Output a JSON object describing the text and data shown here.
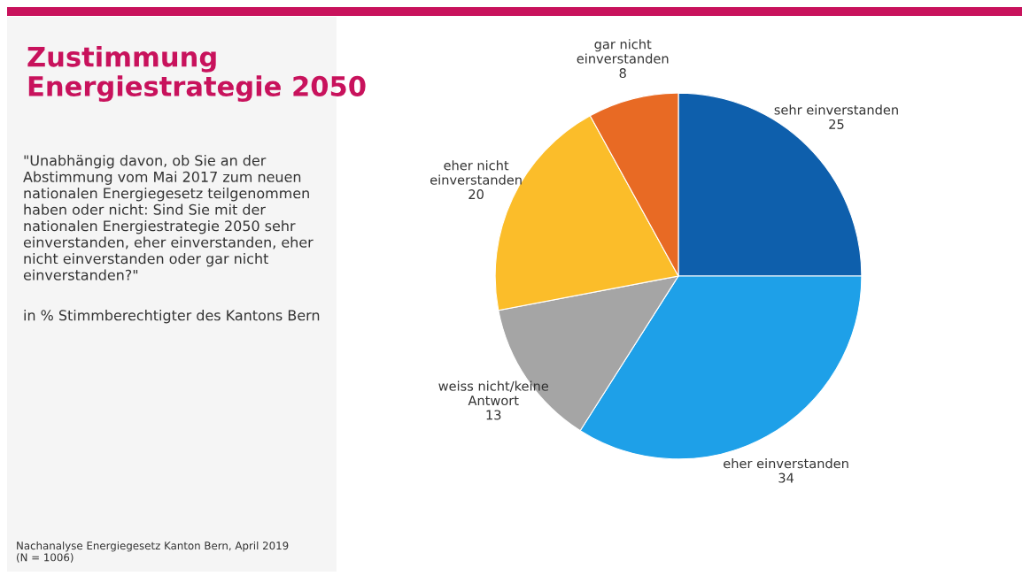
{
  "chart_data": {
    "type": "pie",
    "title": "Zustimmung\nEnergiestrategie 2050",
    "subtitle": "\"Unabhängig davon, ob Sie an der\nAbstimmung vom Mai 2017 zum neuen\nnationalen Energiegesetz teilgenommen\nhaben oder nicht: Sind Sie mit der\nnationalen Energiestrategie 2050 sehr\neinverstanden, eher einverstanden, eher\nnicht einverstanden oder gar nicht\neinverstanden?\"",
    "annotations": [
      "in % Stimmberechtigter des Kantons Bern",
      "Nachanalyse Energiegesetz Kanton Bern, April 2019\n(N = 1006)"
    ],
    "categories": [
      "sehr einverstanden",
      "eher einverstanden",
      "weiss nicht/keine\nAntwort",
      "eher nicht\neinverstanden",
      "gar nicht\neinverstanden"
    ],
    "values": [
      25,
      34,
      13,
      20,
      8
    ],
    "colors": [
      "#0e5fac",
      "#1ea0e8",
      "#a5a5a5",
      "#fbbd2a",
      "#e86a24"
    ],
    "data_labels": true,
    "legend": false
  }
}
